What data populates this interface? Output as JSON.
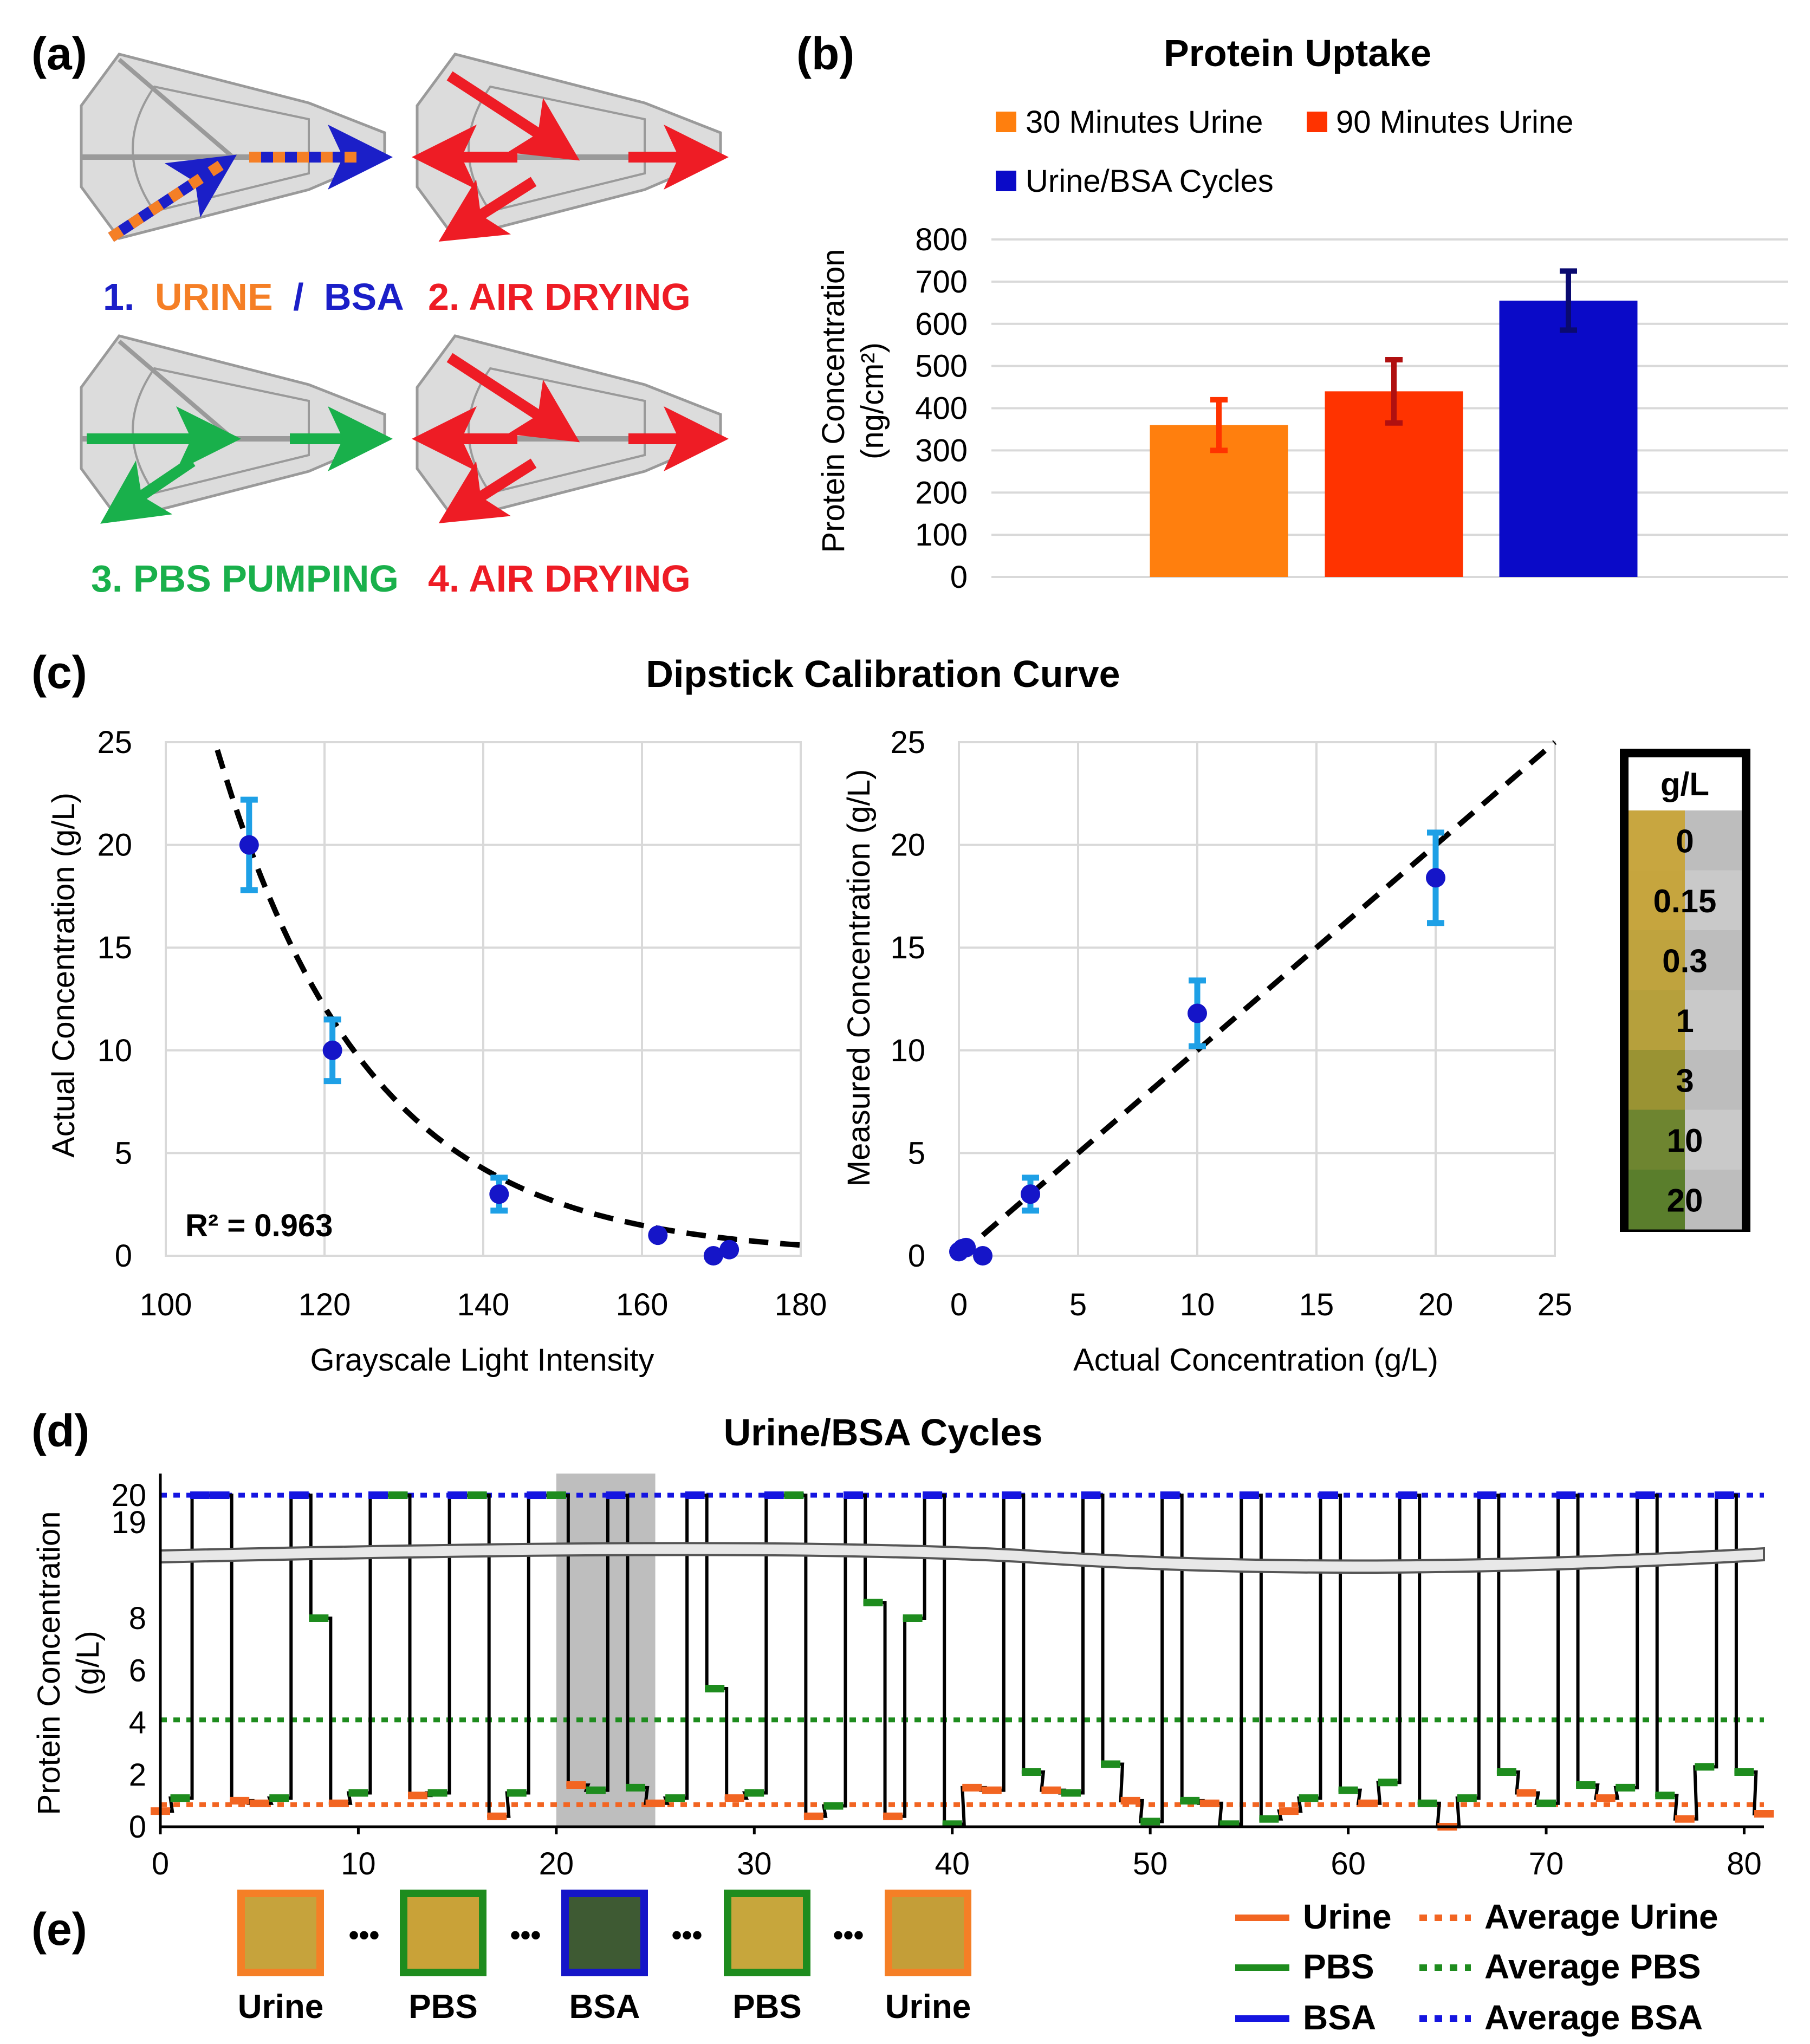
{
  "panel_labels": {
    "a": "(a)",
    "b": "(b)",
    "c": "(c)",
    "d": "(d)",
    "e": "(e)"
  },
  "panel_a": {
    "step1_num": "1.",
    "step1_urine": "URINE",
    "step1_slash": "/",
    "step1_bsa": "BSA",
    "step2": "2. AIR DRYING",
    "step3": "3. PBS PUMPING",
    "step4": "4. AIR DRYING",
    "colors": {
      "urine": "#F57F26",
      "bsa": "#1B1FC8",
      "air": "#EE1C25",
      "pbs": "#19B04B"
    }
  },
  "panel_e": {
    "labels": [
      "Urine",
      "PBS",
      "BSA",
      "PBS",
      "Urine"
    ],
    "ellipsis": "•••",
    "frame_colors": [
      "#F57F26",
      "#1E8C1E",
      "#1515C8",
      "#1E8C1E",
      "#F57F26"
    ],
    "fill_colors": [
      "#C6A33C",
      "#C9A238",
      "#3E5A33",
      "#C7A63C",
      "#C49E38"
    ]
  },
  "legend_d": {
    "items": [
      {
        "label": "Urine",
        "color": "#F26522",
        "style": "solid"
      },
      {
        "label": "Average Urine",
        "color": "#F26522",
        "style": "dotted"
      },
      {
        "label": "PBS",
        "color": "#1E8C1E",
        "style": "solid"
      },
      {
        "label": "Average PBS",
        "color": "#1E8C1E",
        "style": "dotted"
      },
      {
        "label": "BSA",
        "color": "#1515E0",
        "style": "solid"
      },
      {
        "label": "Average BSA",
        "color": "#1515E0",
        "style": "dotted"
      }
    ]
  },
  "swatch": {
    "header": "g/L",
    "levels": [
      "0",
      "0.15",
      "0.3",
      "1",
      "3",
      "10",
      "20"
    ],
    "colors": [
      "#C8A640",
      "#C6A53E",
      "#BFA33E",
      "#B6A03C",
      "#9A9333",
      "#6E8530",
      "#5A7E2C"
    ]
  },
  "chart_data": [
    {
      "id": "protein-uptake",
      "type": "bar",
      "title": "Protein Uptake",
      "ylabel_line1": "Protein Concentration",
      "ylabel_line2": "(ng/cm²)",
      "ylim": [
        0,
        800
      ],
      "yticks": [
        "0",
        "100",
        "200",
        "300",
        "400",
        "500",
        "600",
        "700",
        "800"
      ],
      "grid": true,
      "categories": [
        "30 Minutes Urine",
        "90 Minutes Urine",
        "Urine/BSA Cycles"
      ],
      "values": [
        360,
        440,
        655
      ],
      "errors": [
        60,
        75,
        70
      ],
      "colors": [
        "#FF7F0E",
        "#FF3300",
        "#0A0AC8"
      ],
      "error_colors": [
        "#FF3300",
        "#B01010",
        "#0A0A70"
      ],
      "legend": [
        {
          "label": "30 Minutes Urine",
          "color": "#FF7F0E"
        },
        {
          "label": "90 Minutes Urine",
          "color": "#FF3300"
        },
        {
          "label": "Urine/BSA Cycles",
          "color": "#0A0AC8"
        }
      ]
    },
    {
      "id": "calibration-curve",
      "type": "scatter",
      "title": "Dipstick Calibration Curve",
      "xlabel": "Grayscale Light Intensity",
      "ylabel": "Actual Concentration (g/L)",
      "xlim": [
        100,
        180
      ],
      "ylim": [
        0,
        25
      ],
      "xticks": [
        "100",
        "120",
        "140",
        "160",
        "180"
      ],
      "yticks": [
        "0",
        "5",
        "10",
        "15",
        "20",
        "25"
      ],
      "annotation": "R² = 0.963",
      "grid": true,
      "points": [
        {
          "x": 110.5,
          "y": 20,
          "err": 2.2
        },
        {
          "x": 121,
          "y": 10,
          "err": 1.5
        },
        {
          "x": 142,
          "y": 3,
          "err": 0.8
        },
        {
          "x": 162,
          "y": 1,
          "err": 0
        },
        {
          "x": 169,
          "y": 0,
          "err": 0
        },
        {
          "x": 171,
          "y": 0.3,
          "err": 0
        }
      ],
      "fit": {
        "model": "exponential",
        "a": 6600,
        "b": 0.0525,
        "x_from": 106.5,
        "x_to": 180
      }
    },
    {
      "id": "measured-vs-actual",
      "type": "scatter",
      "xlabel": "Actual Concentration (g/L)",
      "ylabel": "Measured Concentration (g/L)",
      "xlim": [
        0,
        25
      ],
      "ylim": [
        0,
        25
      ],
      "xticks": [
        "0",
        "5",
        "10",
        "15",
        "20",
        "25"
      ],
      "yticks": [
        "0",
        "5",
        "10",
        "15",
        "20",
        "25"
      ],
      "grid": true,
      "points": [
        {
          "x": 0,
          "y": 0.2,
          "err": 0
        },
        {
          "x": 0.15,
          "y": 0.35,
          "err": 0
        },
        {
          "x": 0.3,
          "y": 0.4,
          "err": 0
        },
        {
          "x": 1,
          "y": 0,
          "err": 0
        },
        {
          "x": 3,
          "y": 3,
          "err": 0.8
        },
        {
          "x": 10,
          "y": 11.8,
          "err": 1.6
        },
        {
          "x": 20,
          "y": 18.4,
          "err": 2.2
        }
      ],
      "fit": {
        "model": "identity",
        "x_from": 0,
        "x_to": 25
      }
    },
    {
      "id": "urine-bsa-cycles",
      "type": "line",
      "title": "Urine/BSA Cycles",
      "ylabel_line1": "Protein Concentration",
      "ylabel_line2": "(g/L)",
      "xlim": [
        0,
        81
      ],
      "xticks": [
        "0",
        "10",
        "20",
        "30",
        "40",
        "50",
        "60",
        "70",
        "80"
      ],
      "yticks_lower": [
        "0",
        "2",
        "4",
        "6",
        "8"
      ],
      "yticks_upper": [
        "19",
        "20"
      ],
      "axis_break": true,
      "highlight_x": [
        20,
        25
      ],
      "averages": {
        "urine": 0.85,
        "pbs": 4.1,
        "bsa": 20
      },
      "segments": [
        [
          0,
          0.6,
          "U"
        ],
        [
          1,
          1.1,
          "P"
        ],
        [
          2,
          20,
          "B"
        ],
        [
          3,
          20,
          "B"
        ],
        [
          4,
          1.0,
          "U"
        ],
        [
          5,
          0.9,
          "U"
        ],
        [
          6,
          1.1,
          "P"
        ],
        [
          7,
          20,
          "B"
        ],
        [
          8,
          8.0,
          "P"
        ],
        [
          9,
          0.9,
          "U"
        ],
        [
          10,
          1.3,
          "P"
        ],
        [
          11,
          20,
          "B"
        ],
        [
          12,
          20,
          "P"
        ],
        [
          13,
          1.2,
          "U"
        ],
        [
          14,
          1.3,
          "P"
        ],
        [
          15,
          20,
          "B"
        ],
        [
          16,
          20,
          "P"
        ],
        [
          17,
          0.4,
          "U"
        ],
        [
          18,
          1.3,
          "P"
        ],
        [
          19,
          20,
          "B"
        ],
        [
          20,
          20,
          "P"
        ],
        [
          21,
          1.6,
          "U"
        ],
        [
          22,
          1.4,
          "P"
        ],
        [
          23,
          20,
          "B"
        ],
        [
          24,
          1.5,
          "P"
        ],
        [
          25,
          0.9,
          "U"
        ],
        [
          26,
          1.1,
          "P"
        ],
        [
          27,
          20,
          "B"
        ],
        [
          28,
          5.3,
          "P"
        ],
        [
          29,
          1.1,
          "U"
        ],
        [
          30,
          1.3,
          "P"
        ],
        [
          31,
          20,
          "B"
        ],
        [
          32,
          20,
          "P"
        ],
        [
          33,
          0.4,
          "U"
        ],
        [
          34,
          0.8,
          "P"
        ],
        [
          35,
          20,
          "B"
        ],
        [
          36,
          8.6,
          "P"
        ],
        [
          37,
          0.4,
          "U"
        ],
        [
          38,
          8.0,
          "P"
        ],
        [
          39,
          20,
          "B"
        ],
        [
          40,
          0.1,
          "P"
        ],
        [
          41,
          1.5,
          "U"
        ],
        [
          42,
          1.4,
          "U"
        ],
        [
          43,
          20,
          "B"
        ],
        [
          44,
          2.1,
          "P"
        ],
        [
          45,
          1.4,
          "U"
        ],
        [
          46,
          1.3,
          "P"
        ],
        [
          47,
          20,
          "B"
        ],
        [
          48,
          2.4,
          "P"
        ],
        [
          49,
          1.0,
          "U"
        ],
        [
          50,
          0.2,
          "P"
        ],
        [
          51,
          20,
          "B"
        ],
        [
          52,
          1.0,
          "P"
        ],
        [
          53,
          0.9,
          "U"
        ],
        [
          54,
          0.1,
          "P"
        ],
        [
          55,
          20,
          "B"
        ],
        [
          56,
          0.3,
          "P"
        ],
        [
          57,
          0.6,
          "U"
        ],
        [
          58,
          1.1,
          "P"
        ],
        [
          59,
          20,
          "B"
        ],
        [
          60,
          1.4,
          "P"
        ],
        [
          61,
          0.9,
          "U"
        ],
        [
          62,
          1.7,
          "P"
        ],
        [
          63,
          20,
          "B"
        ],
        [
          64,
          0.9,
          "P"
        ],
        [
          65,
          0.0,
          "U"
        ],
        [
          66,
          1.1,
          "P"
        ],
        [
          67,
          20,
          "B"
        ],
        [
          68,
          2.1,
          "P"
        ],
        [
          69,
          1.3,
          "U"
        ],
        [
          70,
          0.9,
          "P"
        ],
        [
          71,
          20,
          "B"
        ],
        [
          72,
          1.6,
          "P"
        ],
        [
          73,
          1.1,
          "U"
        ],
        [
          74,
          1.5,
          "P"
        ],
        [
          75,
          20,
          "B"
        ],
        [
          76,
          1.2,
          "P"
        ],
        [
          77,
          0.3,
          "U"
        ],
        [
          78,
          2.3,
          "P"
        ],
        [
          79,
          20,
          "B"
        ],
        [
          80,
          2.1,
          "P"
        ],
        [
          81,
          0.5,
          "U"
        ]
      ]
    }
  ]
}
